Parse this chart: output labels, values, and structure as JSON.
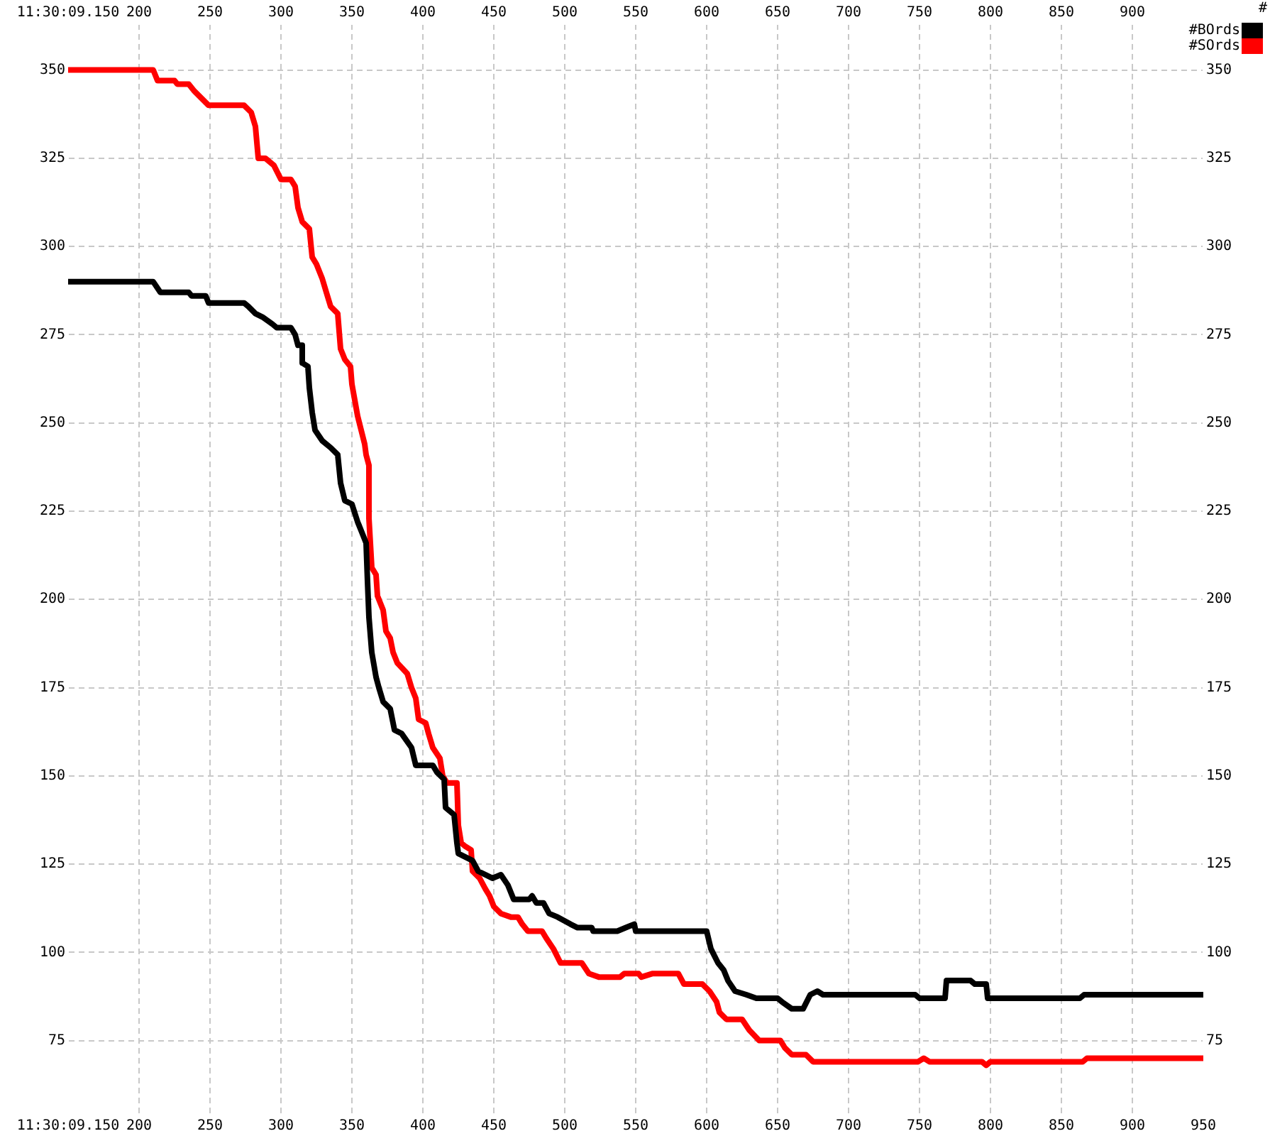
{
  "chart_data": {
    "type": "line",
    "y2label": "#",
    "legend": "top right",
    "grid": true,
    "line_style": "solid",
    "xlim": [
      150,
      950
    ],
    "xticks": [
      {
        "value": 150,
        "label": "11:30:09.150"
      },
      200,
      250,
      300,
      350,
      400,
      450,
      500,
      550,
      600,
      650,
      700,
      750,
      800,
      850,
      900,
      950
    ],
    "x2lim": [
      150,
      950
    ],
    "x2ticks": [
      {
        "value": 150,
        "label": "11:30:09.150"
      },
      200,
      250,
      300,
      350,
      400,
      450,
      500,
      550,
      600,
      650,
      700,
      750,
      800,
      850,
      900,
      {
        "value": 950,
        "label": null
      }
    ],
    "ylim": [
      54,
      363
    ],
    "yticks": [
      75,
      100,
      125,
      150,
      175,
      200,
      225,
      250,
      275,
      300,
      325,
      350
    ],
    "y2lim": [
      54,
      363
    ],
    "y2ticks": [
      75,
      100,
      125,
      150,
      175,
      200,
      225,
      250,
      275,
      300,
      325,
      350
    ],
    "series": [
      {
        "name": "#BOrds",
        "color": "#000000",
        "x": [
          150,
          210,
          215,
          235,
          237,
          247,
          249,
          274,
          277,
          282,
          287,
          294,
          297,
          307,
          310,
          312,
          315,
          315,
          319,
          320,
          322,
          324,
          329,
          335,
          340,
          342,
          345,
          350,
          354,
          357,
          360,
          361,
          362,
          364,
          367,
          369,
          372,
          377,
          380,
          385,
          392,
          395,
          407,
          410,
          415,
          416,
          422,
          424,
          425,
          435,
          439,
          449,
          455,
          460,
          464,
          475,
          477,
          480,
          485,
          489,
          495,
          504,
          509,
          519,
          520,
          537,
          543,
          549,
          550,
          600,
          603,
          608,
          612,
          615,
          620,
          628,
          635,
          650,
          653,
          660,
          668,
          673,
          678,
          682,
          747,
          750,
          768,
          769,
          786,
          789,
          797,
          798,
          863,
          866,
          950
        ],
        "values": [
          290,
          290,
          287,
          287,
          286,
          286,
          284,
          284,
          283,
          281,
          280,
          278,
          277,
          277,
          275,
          272,
          272,
          267,
          266,
          260,
          253,
          248,
          245,
          243,
          241,
          233,
          228,
          227,
          222,
          219,
          216,
          205,
          195,
          185,
          178,
          175,
          171,
          169,
          163,
          162,
          158,
          153,
          153,
          151,
          149,
          141,
          139,
          131,
          128,
          126,
          123,
          121,
          122,
          119,
          115,
          115,
          116,
          114,
          114,
          111,
          110,
          108,
          107,
          107,
          106,
          106,
          107,
          108,
          106,
          106,
          101,
          97,
          95,
          92,
          89,
          88,
          87,
          87,
          86,
          84,
          84,
          88,
          89,
          88,
          88,
          87,
          87,
          92,
          92,
          91,
          91,
          87,
          87,
          88,
          88
        ]
      },
      {
        "name": "#SOrds",
        "color": "#ff0000",
        "x": [
          150,
          210,
          213,
          225,
          227,
          235,
          239,
          244,
          249,
          274,
          279,
          282,
          284,
          289,
          295,
          300,
          307,
          310,
          312,
          315,
          320,
          322,
          325,
          329,
          332,
          335,
          340,
          342,
          345,
          349,
          350,
          354,
          359,
          360,
          362,
          362,
          364,
          367,
          368,
          372,
          374,
          377,
          379,
          382,
          389,
          392,
          395,
          397,
          402,
          404,
          407,
          412,
          414,
          417,
          424,
          425,
          427,
          430,
          434,
          435,
          440,
          444,
          447,
          450,
          455,
          462,
          467,
          470,
          474,
          484,
          487,
          492,
          497,
          512,
          517,
          524,
          539,
          542,
          552,
          554,
          562,
          580,
          584,
          597,
          602,
          607,
          609,
          614,
          625,
          630,
          637,
          652,
          655,
          660,
          670,
          675,
          749,
          753,
          757,
          794,
          797,
          800,
          865,
          868,
          950
        ],
        "values": [
          350,
          350,
          347,
          347,
          346,
          346,
          344,
          342,
          340,
          340,
          338,
          334,
          325,
          325,
          323,
          319,
          319,
          317,
          311,
          307,
          305,
          297,
          295,
          291,
          287,
          283,
          281,
          271,
          268,
          266,
          261,
          252,
          244,
          241,
          238,
          223,
          209,
          207,
          201,
          197,
          191,
          189,
          185,
          182,
          179,
          175,
          172,
          166,
          165,
          162,
          158,
          155,
          150,
          148,
          148,
          136,
          131,
          130,
          129,
          123,
          121,
          118,
          116,
          113,
          111,
          110,
          110,
          108,
          106,
          106,
          104,
          101,
          97,
          97,
          94,
          93,
          93,
          94,
          94,
          93,
          94,
          94,
          91,
          91,
          89,
          86,
          83,
          81,
          81,
          78,
          75,
          75,
          73,
          71,
          71,
          69,
          69,
          70,
          69,
          69,
          68,
          69,
          69,
          70,
          70
        ]
      }
    ]
  }
}
